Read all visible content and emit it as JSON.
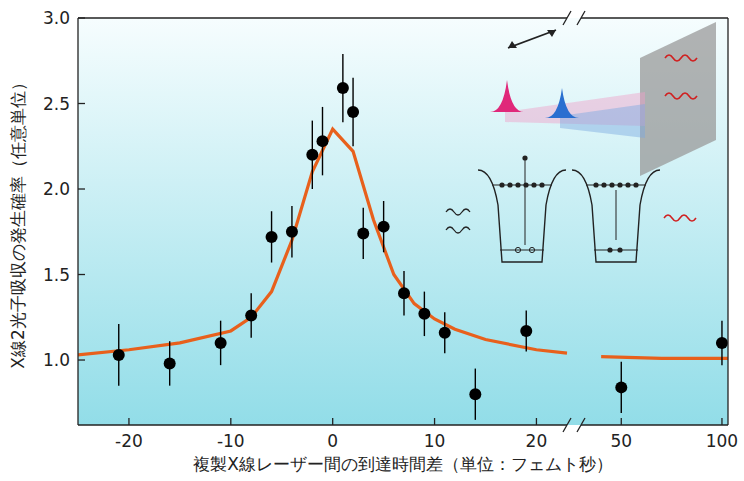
{
  "chart_data": {
    "type": "scatter",
    "x_label": "複製X線レーザー間の到達時間差（単位：フェムト秒）",
    "y_label": "X線2光子吸収の発生確率（任意単位）",
    "xlim": [
      -25,
      103
    ],
    "x_break": [
      23,
      30
    ],
    "xticks": [
      -20,
      -10,
      0,
      10,
      20,
      50,
      100
    ],
    "ylim": [
      0.62,
      3.0
    ],
    "yticks": [
      {
        "value": 1.0,
        "label": "1.0"
      },
      1.5,
      {
        "value": 2.0,
        "label": "2.0"
      },
      2.5,
      {
        "value": 3.0,
        "label": "3.0"
      }
    ],
    "grid": false,
    "series": [
      {
        "type": "scatter",
        "color": "#000000",
        "marker": "circle",
        "x": [
          -21,
          -16,
          -11,
          -8,
          -6,
          -4,
          -2,
          -1,
          1,
          2,
          3,
          5,
          7,
          9,
          11,
          14,
          19,
          50,
          100
        ],
        "values": [
          1.03,
          0.98,
          1.1,
          1.26,
          1.72,
          1.75,
          2.2,
          2.28,
          2.59,
          2.45,
          1.74,
          1.78,
          1.39,
          1.27,
          1.16,
          0.8,
          1.17,
          0.84,
          1.1
        ],
        "errors": [
          0.18,
          0.13,
          0.13,
          0.13,
          0.15,
          0.15,
          0.2,
          0.2,
          0.2,
          0.2,
          0.15,
          0.15,
          0.13,
          0.13,
          0.12,
          0.15,
          0.12,
          0.15,
          0.13
        ]
      },
      {
        "type": "line",
        "color": "#e8601c",
        "line_style": "solid",
        "x": [
          -25,
          -20,
          -15,
          -10,
          -8,
          -6,
          -4,
          -2,
          0,
          2,
          4,
          6,
          8,
          10,
          12,
          15,
          20,
          23,
          30,
          40,
          70,
          103
        ],
        "values": [
          1.03,
          1.06,
          1.1,
          1.17,
          1.25,
          1.4,
          1.7,
          2.1,
          2.35,
          2.22,
          1.82,
          1.5,
          1.33,
          1.24,
          1.18,
          1.12,
          1.06,
          1.04,
          null,
          1.02,
          1.01,
          1.01
        ]
      }
    ]
  }
}
